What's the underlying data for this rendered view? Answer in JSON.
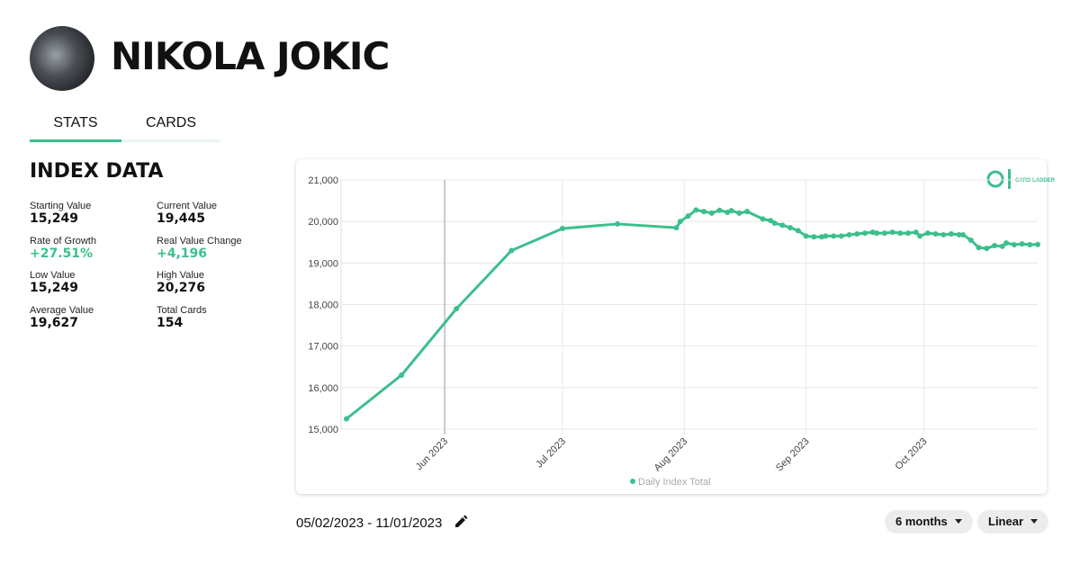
{
  "header": {
    "name": "NIKOLA JOKIC"
  },
  "tabs": [
    "STATS",
    "CARDS"
  ],
  "index_data": {
    "title": "INDEX DATA",
    "stats": [
      {
        "label": "Starting Value",
        "value": "15,249"
      },
      {
        "label": "Current Value",
        "value": "19,445"
      },
      {
        "label": "Rate of Growth",
        "value": "+27.51%"
      },
      {
        "label": "Real Value Change",
        "value": "+4,196"
      },
      {
        "label": "Low Value",
        "value": "15,249"
      },
      {
        "label": "High Value",
        "value": "20,276"
      },
      {
        "label": "Average Value",
        "value": "19,627"
      },
      {
        "label": "Total Cards",
        "value": "154"
      }
    ]
  },
  "chart_data": {
    "type": "line",
    "brand": "CARD LADDER",
    "x": [
      5,
      19,
      33,
      47,
      60,
      74,
      89,
      90,
      92,
      94,
      96,
      98,
      100,
      102,
      103,
      105,
      107,
      111,
      113,
      114,
      116,
      118,
      120,
      122,
      124,
      126,
      127,
      129,
      131,
      133,
      135,
      137,
      139,
      140,
      142,
      144,
      146,
      148,
      150,
      151,
      153,
      155,
      157,
      159,
      161,
      162,
      164,
      166,
      168,
      170,
      172,
      173,
      175,
      177,
      179,
      181
    ],
    "series": [
      {
        "name": "Daily Index Total",
        "color": "#3cbf8c",
        "values": [
          15249,
          16300,
          17900,
          19300,
          19830,
          19940,
          19850,
          20000,
          20130,
          20276,
          20240,
          20200,
          20270,
          20220,
          20260,
          20200,
          20240,
          20060,
          20020,
          19960,
          19910,
          19850,
          19780,
          19650,
          19630,
          19630,
          19650,
          19650,
          19650,
          19680,
          19700,
          19720,
          19740,
          19720,
          19720,
          19740,
          19720,
          19720,
          19740,
          19650,
          19720,
          19700,
          19680,
          19700,
          19680,
          19680,
          19550,
          19370,
          19350,
          19420,
          19400,
          19480,
          19440,
          19460,
          19440,
          19445
        ]
      }
    ],
    "xlim": [
      5,
      181
    ],
    "xticks": [
      {
        "value": 30,
        "label": "Jun 2023"
      },
      {
        "value": 60,
        "label": "Jul 2023"
      },
      {
        "value": 91,
        "label": "Aug 2023"
      },
      {
        "value": 122,
        "label": "Sep 2023"
      },
      {
        "value": 152,
        "label": "Oct 2023"
      }
    ],
    "ylim": [
      15000,
      21000
    ],
    "yticks": [
      {
        "value": 15000,
        "label": "15,000"
      },
      {
        "value": 16000,
        "label": "16,000"
      },
      {
        "value": 17000,
        "label": "17,000"
      },
      {
        "value": 18000,
        "label": "18,000"
      },
      {
        "value": 19000,
        "label": "19,000"
      },
      {
        "value": 20000,
        "label": "20,000"
      },
      {
        "value": 21000,
        "label": "21,000"
      }
    ],
    "grid": true
  },
  "date_range": "05/02/2023 - 11/01/2023",
  "controls": [
    "6 months",
    "Linear"
  ]
}
